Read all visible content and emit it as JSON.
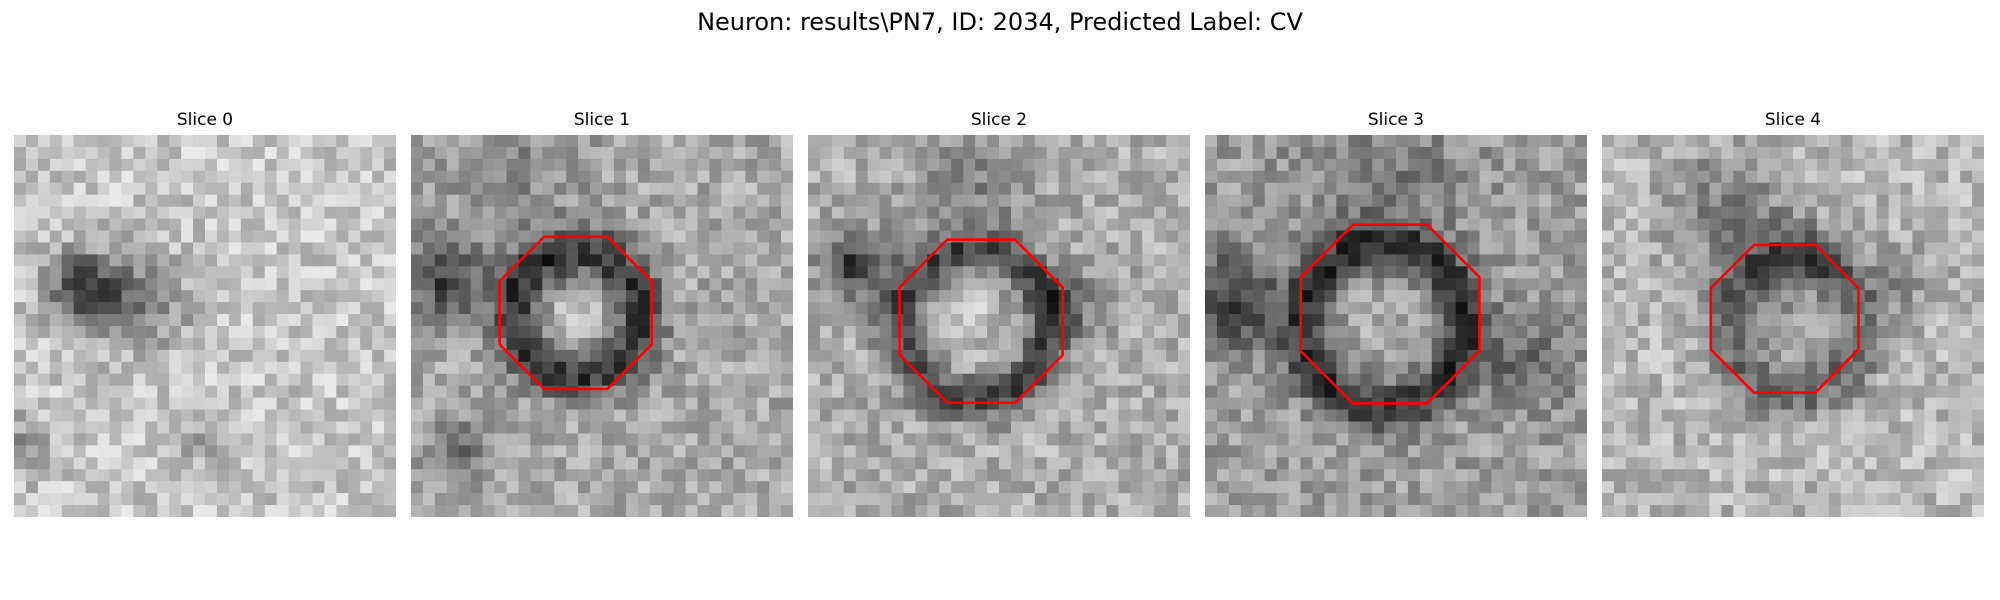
{
  "figure": {
    "title": "Neuron: results\\PN7, ID: 2034, Predicted Label: CV",
    "colors": {
      "background": "#ffffff",
      "outline": "#ff0000"
    },
    "colormap": "gray"
  },
  "panels": [
    {
      "title": "Slice 0",
      "outline": false
    },
    {
      "title": "Slice 1",
      "outline": true
    },
    {
      "title": "Slice 2",
      "outline": true
    },
    {
      "title": "Slice 3",
      "outline": true
    },
    {
      "title": "Slice 4",
      "outline": true
    }
  ]
}
